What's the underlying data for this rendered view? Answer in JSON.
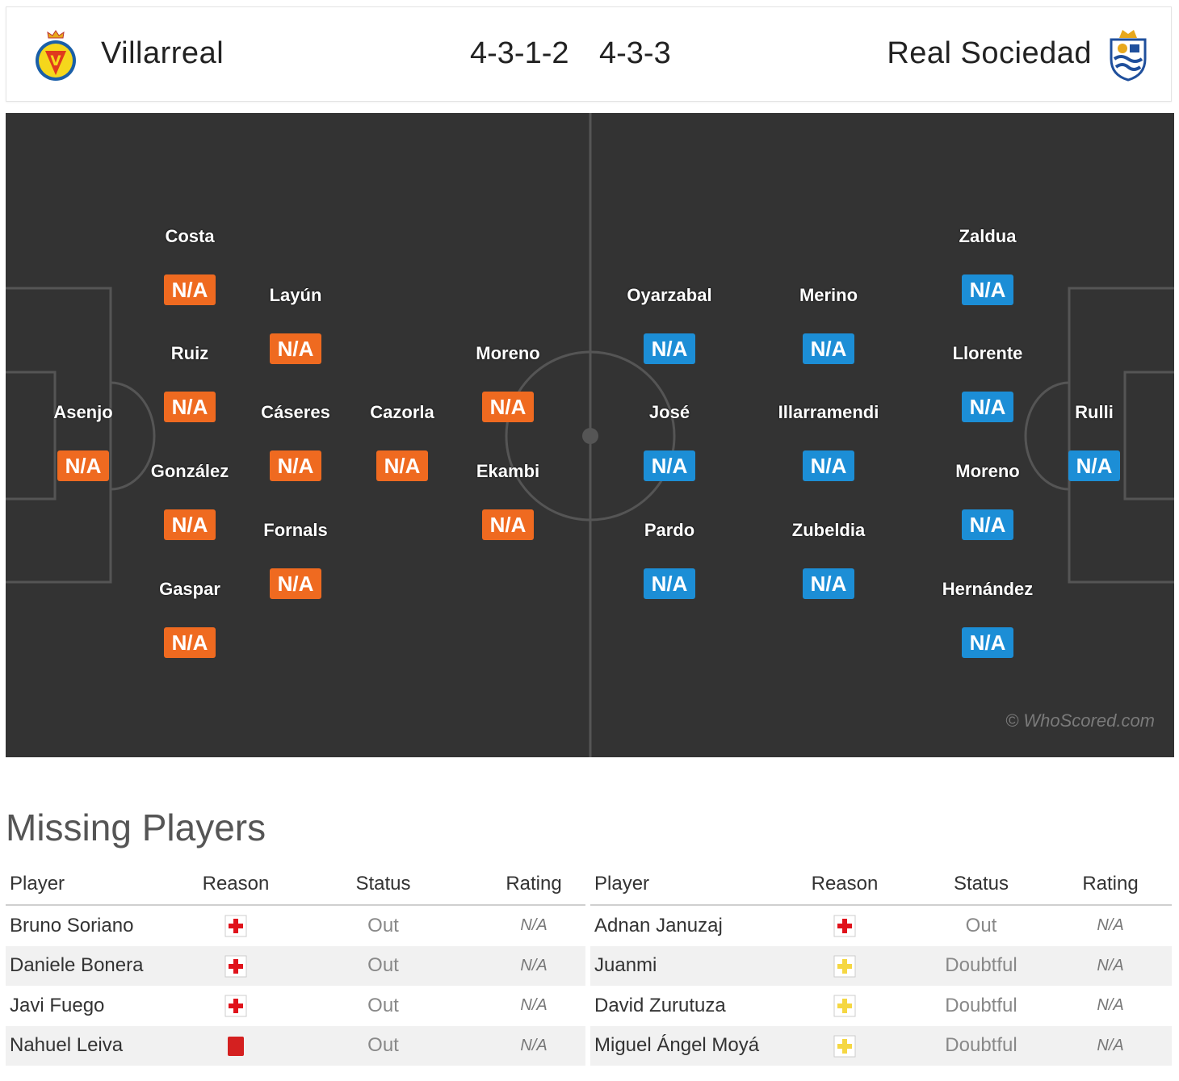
{
  "header": {
    "home_team": "Villarreal",
    "away_team": "Real Sociedad",
    "home_formation": "4-3-1-2",
    "away_formation": "4-3-3",
    "home_crest_icon": "villarreal-crest-icon",
    "away_crest_icon": "real-sociedad-crest-icon"
  },
  "colors": {
    "pitch": "#333333",
    "home_rating": "#ef6a20",
    "away_rating": "#1c8ed6",
    "injury": "#e0121b",
    "doubtful": "#f5d742",
    "red_card": "#d42020"
  },
  "pitch": {
    "watermark": "© WhoScored.com",
    "home_players": [
      {
        "name": "Costa",
        "rating": "N/A"
      },
      {
        "name": "Layún",
        "rating": "N/A"
      },
      {
        "name": "Ruiz",
        "rating": "N/A"
      },
      {
        "name": "Moreno",
        "rating": "N/A"
      },
      {
        "name": "Asenjo",
        "rating": "N/A"
      },
      {
        "name": "Cáseres",
        "rating": "N/A"
      },
      {
        "name": "Cazorla",
        "rating": "N/A"
      },
      {
        "name": "González",
        "rating": "N/A"
      },
      {
        "name": "Ekambi",
        "rating": "N/A"
      },
      {
        "name": "Fornals",
        "rating": "N/A"
      },
      {
        "name": "Gaspar",
        "rating": "N/A"
      }
    ],
    "away_players": [
      {
        "name": "Zaldua",
        "rating": "N/A"
      },
      {
        "name": "Oyarzabal",
        "rating": "N/A"
      },
      {
        "name": "Merino",
        "rating": "N/A"
      },
      {
        "name": "Llorente",
        "rating": "N/A"
      },
      {
        "name": "José",
        "rating": "N/A"
      },
      {
        "name": "Illarramendi",
        "rating": "N/A"
      },
      {
        "name": "Rulli",
        "rating": "N/A"
      },
      {
        "name": "Moreno",
        "rating": "N/A"
      },
      {
        "name": "Pardo",
        "rating": "N/A"
      },
      {
        "name": "Zubeldia",
        "rating": "N/A"
      },
      {
        "name": "Hernández",
        "rating": "N/A"
      }
    ]
  },
  "missing": {
    "title": "Missing Players",
    "columns": [
      "Player",
      "Reason",
      "Status",
      "Rating"
    ],
    "home": [
      {
        "player": "Bruno Soriano",
        "reason": "injury-icon",
        "status": "Out",
        "rating": "N/A"
      },
      {
        "player": "Daniele Bonera",
        "reason": "injury-icon",
        "status": "Out",
        "rating": "N/A"
      },
      {
        "player": "Javi Fuego",
        "reason": "injury-icon",
        "status": "Out",
        "rating": "N/A"
      },
      {
        "player": "Nahuel Leiva",
        "reason": "red-card-icon",
        "status": "Out",
        "rating": "N/A"
      }
    ],
    "away": [
      {
        "player": "Adnan Januzaj",
        "reason": "injury-icon",
        "status": "Out",
        "rating": "N/A"
      },
      {
        "player": "Juanmi",
        "reason": "doubtful-icon",
        "status": "Doubtful",
        "rating": "N/A"
      },
      {
        "player": "David Zurutuza",
        "reason": "doubtful-icon",
        "status": "Doubtful",
        "rating": "N/A"
      },
      {
        "player": "Miguel Ángel Moyá",
        "reason": "doubtful-icon",
        "status": "Doubtful",
        "rating": "N/A"
      }
    ]
  }
}
